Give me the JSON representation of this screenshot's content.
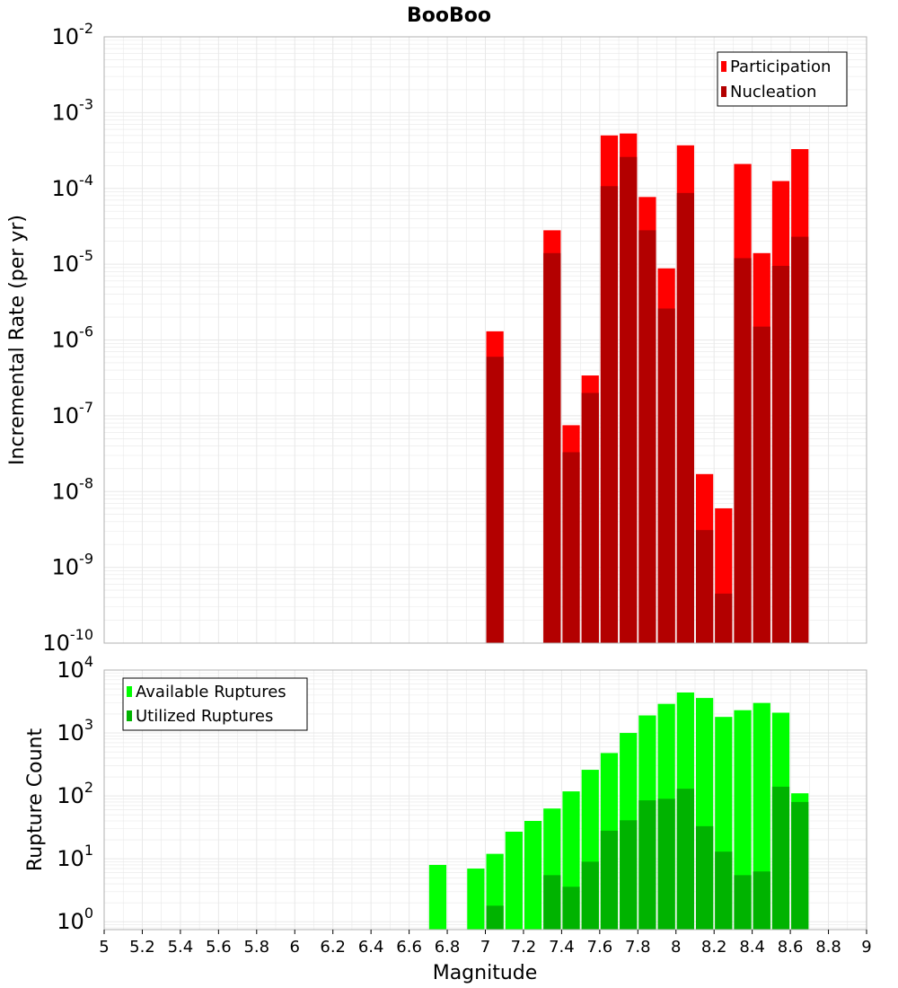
{
  "title": "BooBoo",
  "xlabel": "Magnitude",
  "x_tick_labels": [
    "5",
    "5.2",
    "5.4",
    "5.6",
    "5.8",
    "6",
    "6.2",
    "6.4",
    "6.6",
    "6.8",
    "7",
    "7.2",
    "7.4",
    "7.6",
    "7.8",
    "8",
    "8.2",
    "8.4",
    "8.6",
    "8.8",
    "9"
  ],
  "colors": {
    "participation": "#ff0000",
    "nucleation": "#b30000",
    "available": "#00ff00",
    "utilized": "#00b300",
    "grid": "#e8e8e8",
    "frame": "#b0b0b0"
  },
  "chart_data": [
    {
      "type": "bar",
      "title": "BooBoo",
      "xlabel": "Magnitude",
      "ylabel": "Incremental Rate (per yr)",
      "yscale": "log",
      "ylim": [
        1e-10,
        0.01
      ],
      "xlim": [
        5,
        9
      ],
      "y_tick_exponents": [
        "-10",
        "-9",
        "-8",
        "-7",
        "-6",
        "-5",
        "-4",
        "-3",
        "-2"
      ],
      "grid": true,
      "legend_position": "top-right",
      "x": [
        7.05,
        7.35,
        7.45,
        7.55,
        7.65,
        7.75,
        7.85,
        7.95,
        8.05,
        8.15,
        8.25,
        8.35,
        8.45,
        8.55,
        8.65
      ],
      "series": [
        {
          "name": "Participation",
          "values": [
            1.3e-06,
            2.8e-05,
            7.5e-08,
            3.4e-07,
            0.0005,
            0.00053,
            7.7e-05,
            8.8e-06,
            0.00037,
            1.7e-08,
            6e-09,
            0.00021,
            1.4e-05,
            0.000125,
            0.00033
          ]
        },
        {
          "name": "Nucleation",
          "values": [
            6e-07,
            1.4e-05,
            3.3e-08,
            2e-07,
            0.000107,
            0.00026,
            2.8e-05,
            2.6e-06,
            8.7e-05,
            3.1e-09,
            4.5e-10,
            1.2e-05,
            1.5e-06,
            9.5e-06,
            2.3e-05
          ]
        }
      ]
    },
    {
      "type": "bar",
      "ylabel": "Rupture Count",
      "yscale": "log",
      "ylim": [
        0.75,
        10000
      ],
      "xlim": [
        5,
        9
      ],
      "y_tick_exponents": [
        "0",
        "1",
        "2",
        "3",
        "4"
      ],
      "grid": true,
      "legend_position": "top-left",
      "x": [
        6.75,
        6.95,
        7.05,
        7.15,
        7.25,
        7.35,
        7.45,
        7.55,
        7.65,
        7.75,
        7.85,
        7.95,
        8.05,
        8.15,
        8.25,
        8.35,
        8.45,
        8.55,
        8.65
      ],
      "series": [
        {
          "name": "Available Ruptures",
          "values": [
            8,
            7,
            12,
            27,
            40,
            63,
            118,
            260,
            480,
            1000,
            1900,
            2900,
            4400,
            3600,
            1800,
            2300,
            3000,
            2100,
            110
          ]
        },
        {
          "name": "Utilized Ruptures",
          "values": [
            0,
            0,
            1.8,
            0,
            0,
            5.5,
            3.6,
            9,
            28,
            41,
            85,
            90,
            130,
            33,
            13,
            5.5,
            6.3,
            140,
            80
          ]
        }
      ]
    }
  ]
}
